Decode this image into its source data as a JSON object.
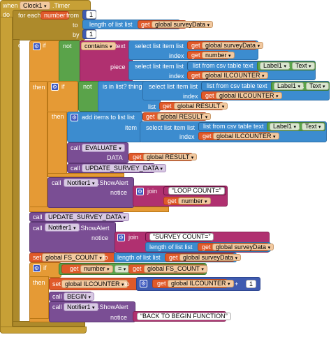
{
  "event": {
    "when": "when",
    "component": "Clock1",
    "event": ".Timer",
    "do": "do"
  },
  "foreach": {
    "label": "for each",
    "var": "number",
    "from": "from",
    "to": "to",
    "by": "by",
    "from_val": "1",
    "by_val": "1",
    "do": "do"
  },
  "len1": {
    "label": "length of list list",
    "get": "get",
    "var": "global surveyData"
  },
  "if1": {
    "if": "if",
    "then": "then",
    "not": "not",
    "contains": "contains",
    "text": "text",
    "piece": "piece",
    "select": "select list item list",
    "index": "index",
    "get": "get",
    "v_survey": "global surveyData",
    "v_number": "number",
    "csv": "list from csv table text",
    "label1": "Label1",
    "text_prop": "Text",
    "v_ilcounter": "global ILCOUNTER"
  },
  "if2": {
    "if": "if",
    "then": "then",
    "not": "not",
    "isin": "is in list? thing",
    "select": "select list item list",
    "csv": "list from csv table text",
    "label1": "Label1",
    "text_prop": "Text",
    "index": "index",
    "get": "get",
    "v_ilcounter": "global ILCOUNTER",
    "list": "list",
    "v_result": "global RESULT"
  },
  "additems": {
    "label": "add items to list list",
    "item": "item",
    "get": "get",
    "v_result": "global RESULT",
    "select": "select list item list",
    "csv": "list from csv table text",
    "label1": "Label1",
    "text_prop": "Text",
    "index": "index",
    "v_ilcounter": "global ILCOUNTER"
  },
  "evaluate": {
    "call": "call",
    "proc": "EVALUATE",
    "data": "DATA",
    "get": "get",
    "v_result": "global RESULT"
  },
  "update1": {
    "call": "call",
    "proc": "UPDATE_SURVEY_DATA"
  },
  "notifier1": {
    "call": "call",
    "comp": "Notifier1",
    "method": ".ShowAlert",
    "notice": "notice",
    "join": "join",
    "str": "LOOP COUNT=",
    "get": "get",
    "var": "number"
  },
  "update2": {
    "call": "call",
    "proc": "UPDATE_SURVEY_DATA"
  },
  "notifier2": {
    "call": "call",
    "comp": "Notifier1",
    "method": ".ShowAlert",
    "notice": "notice",
    "join": "join",
    "str": "SURVEY COUNT=",
    "len": "length of list list",
    "get": "get",
    "var": "global surveyData"
  },
  "setfs": {
    "set": "set",
    "var": "global FS_COUNT",
    "to": "to",
    "len": "length of list list",
    "get": "get",
    "v": "global surveyData"
  },
  "if3": {
    "if": "if",
    "then": "then",
    "get": "get",
    "v_number": "number",
    "eq": "=",
    "v_fs": "global FS_COUNT",
    "set": "set",
    "v_ilc": "global ILCOUNTER",
    "to": "to",
    "plus": "+",
    "one": "1"
  },
  "begin": {
    "call": "call",
    "proc": "BEGIN"
  },
  "notifier3": {
    "call": "call",
    "comp": "Notifier1",
    "method": ".ShowAlert",
    "notice": "notice",
    "str": "BACK TO BEGIN FUNCTION"
  },
  "colors": {
    "event": "#c7a036",
    "control": "#e59a35",
    "list": "#3c8ccf",
    "variable": "#e05a2a",
    "logic": "#5aa34a",
    "text": "#b03070",
    "procedure": "#7a4e94",
    "math": "#3f5bb0"
  },
  "icons": [
    "dropdown-arrow-icon",
    "gear-icon"
  ]
}
